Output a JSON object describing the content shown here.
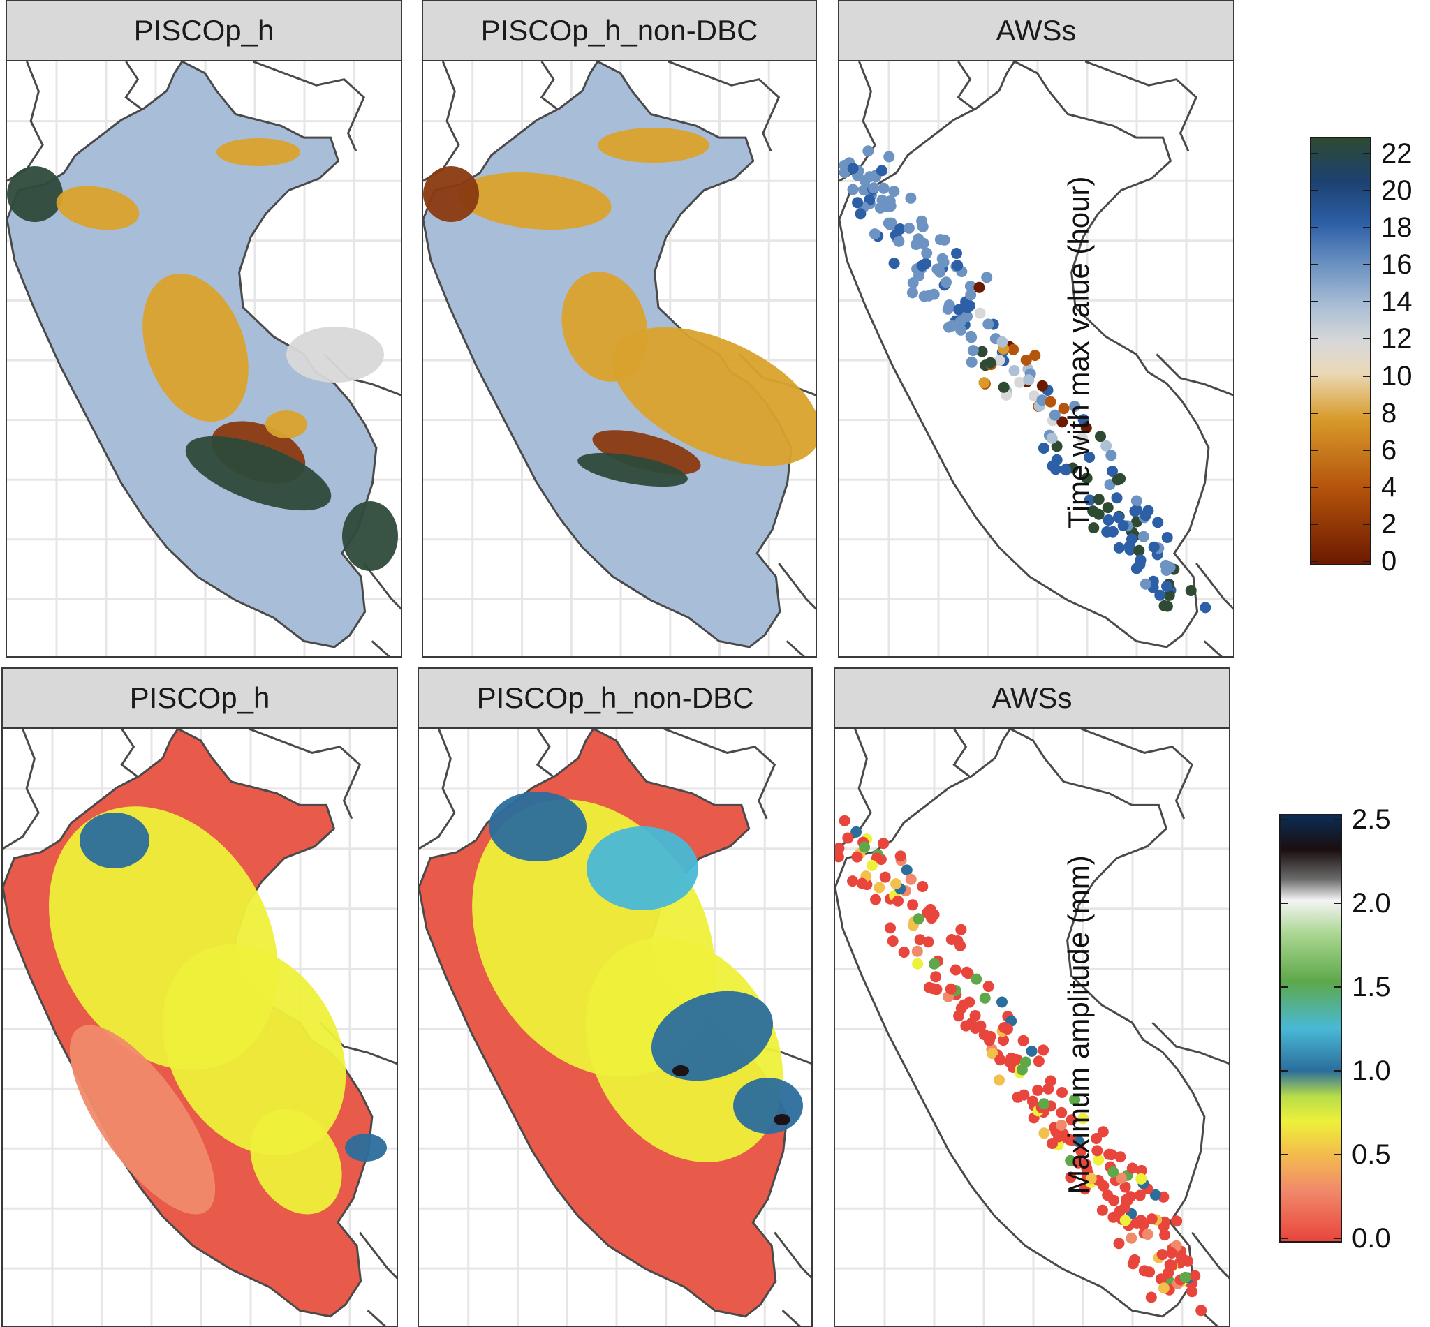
{
  "rows": [
    {
      "variable": "time_of_max",
      "panels": [
        {
          "title": "PISCOp_h",
          "kind": "grid"
        },
        {
          "title": "PISCOp_h_non-DBC",
          "kind": "grid"
        },
        {
          "title": "AWSs",
          "kind": "points"
        }
      ],
      "legend": {
        "title": "Time with max value (hour)",
        "ticks": [
          "22",
          "20",
          "18",
          "16",
          "14",
          "12",
          "10",
          "8",
          "6",
          "4",
          "2",
          "0"
        ],
        "range": [
          0,
          23
        ],
        "colors": [
          "#6b1a00",
          "#b5540c",
          "#d89a2a",
          "#ead9b8",
          "#d8d8d8",
          "#aec0d6",
          "#6d93c2",
          "#2d5fa6",
          "#1c4170",
          "#2e4a32"
        ]
      }
    },
    {
      "variable": "max_amplitude",
      "panels": [
        {
          "title": "PISCOp_h",
          "kind": "grid"
        },
        {
          "title": "PISCOp_h_non-DBC",
          "kind": "grid"
        },
        {
          "title": "AWSs",
          "kind": "points"
        }
      ],
      "legend": {
        "title": "Maximum amplitude (mm)",
        "ticks": [
          "2.5",
          "2.0",
          "1.5",
          "1.0",
          "0.5",
          "0.0"
        ],
        "range": [
          0,
          2.5
        ],
        "colors": [
          "#e8453c",
          "#f08a6a",
          "#f3c04b",
          "#eef03a",
          "#b8dd4a",
          "#2b6e9c",
          "#49b9d6",
          "#5ea84a",
          "#a9d690",
          "#f4f4f4",
          "#6b6b6b",
          "#1a0e0e",
          "#0b2d55"
        ]
      }
    }
  ],
  "colors": {
    "strip_bg": "#d9d9d9",
    "border": "#3a3a3a",
    "grid": "#e6e6e6",
    "country_line": "#4a4a4a",
    "peru_blue_fill": "#a8bdd7",
    "peru_red_fill": "#e85a4a",
    "amber": "#d9a22c",
    "dark_green": "#2e4a3a",
    "brown": "#8a3a10"
  }
}
